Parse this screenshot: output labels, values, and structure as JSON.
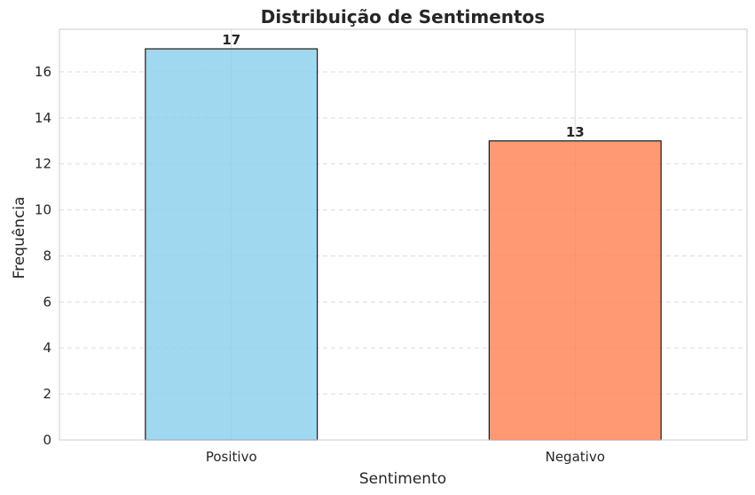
{
  "chart_data": {
    "type": "bar",
    "title": "Distribuição de Sentimentos",
    "xlabel": "Sentimento",
    "ylabel": "Frequência",
    "categories": [
      "Positivo",
      "Negativo"
    ],
    "values": [
      17,
      13
    ],
    "colors": [
      "#87CEEB",
      "#FF7F50"
    ],
    "ylim": [
      0,
      17.85
    ],
    "yticks": [
      0,
      2,
      4,
      6,
      8,
      10,
      12,
      14,
      16
    ],
    "grid": true,
    "data_labels": true
  }
}
